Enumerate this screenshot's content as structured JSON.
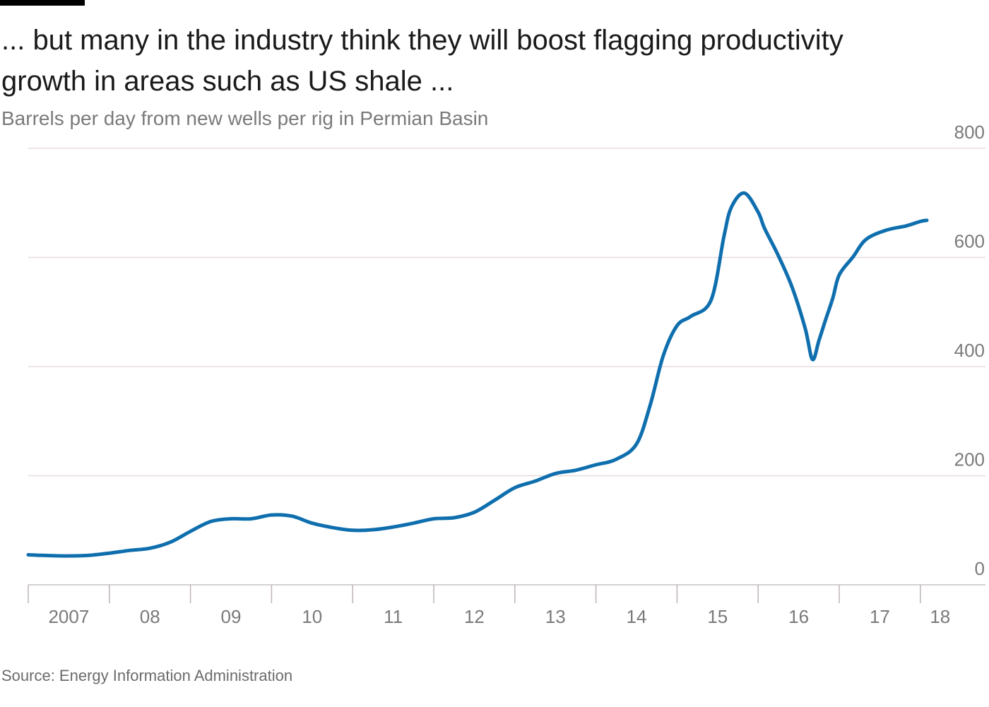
{
  "header": {
    "title": "... but many in the industry think they will boost flagging productivity growth in areas such as US shale ...",
    "subtitle": "Barrels per day from new wells per rig in Permian Basin"
  },
  "footer": {
    "source": "Source: Energy Information Administration"
  },
  "colors": {
    "line": "#0f6fae",
    "grid": "#e6dcdc",
    "text": "#7a7a7a"
  },
  "chart_data": {
    "type": "line",
    "title": "Barrels per day from new wells per rig in Permian Basin",
    "xlabel": "",
    "ylabel": "",
    "ylim": [
      0,
      800
    ],
    "xlim": [
      2007.0,
      2018.3
    ],
    "yticks": [
      0,
      200,
      400,
      600,
      800
    ],
    "ytick_labels": [
      "0",
      "200",
      "400",
      "600",
      "800"
    ],
    "xticks": [
      2007,
      2008,
      2009,
      2010,
      2011,
      2012,
      2013,
      2014,
      2015,
      2016,
      2017,
      2018
    ],
    "xtick_labels": [
      "2007",
      "08",
      "09",
      "10",
      "11",
      "12",
      "13",
      "14",
      "15",
      "16",
      "17",
      "18"
    ],
    "grid": true,
    "series": [
      {
        "name": "Barrels per day from new wells per rig",
        "x": [
          2007.0,
          2007.17,
          2007.5,
          2007.75,
          2008.0,
          2008.25,
          2008.5,
          2008.75,
          2009.0,
          2009.25,
          2009.5,
          2009.75,
          2010.0,
          2010.25,
          2010.5,
          2010.75,
          2011.0,
          2011.25,
          2011.5,
          2011.75,
          2012.0,
          2012.25,
          2012.5,
          2012.75,
          2013.0,
          2013.25,
          2013.5,
          2013.75,
          2014.0,
          2014.25,
          2014.5,
          2014.67,
          2014.83,
          2015.0,
          2015.17,
          2015.42,
          2015.58,
          2015.67,
          2015.83,
          2016.0,
          2016.08,
          2016.25,
          2016.42,
          2016.58,
          2016.67,
          2016.75,
          2016.83,
          2016.92,
          2017.0,
          2017.17,
          2017.33,
          2017.58,
          2017.83,
          2018.0,
          2018.08
        ],
        "values": [
          55,
          54,
          53,
          54,
          58,
          63,
          67,
          78,
          98,
          116,
          121,
          121,
          128,
          126,
          113,
          105,
          100,
          101,
          106,
          113,
          121,
          123,
          133,
          155,
          178,
          190,
          204,
          210,
          220,
          230,
          258,
          330,
          420,
          475,
          492,
          522,
          640,
          692,
          718,
          683,
          653,
          603,
          545,
          470,
          413,
          448,
          485,
          525,
          568,
          601,
          633,
          650,
          658,
          666,
          668
        ]
      }
    ]
  }
}
